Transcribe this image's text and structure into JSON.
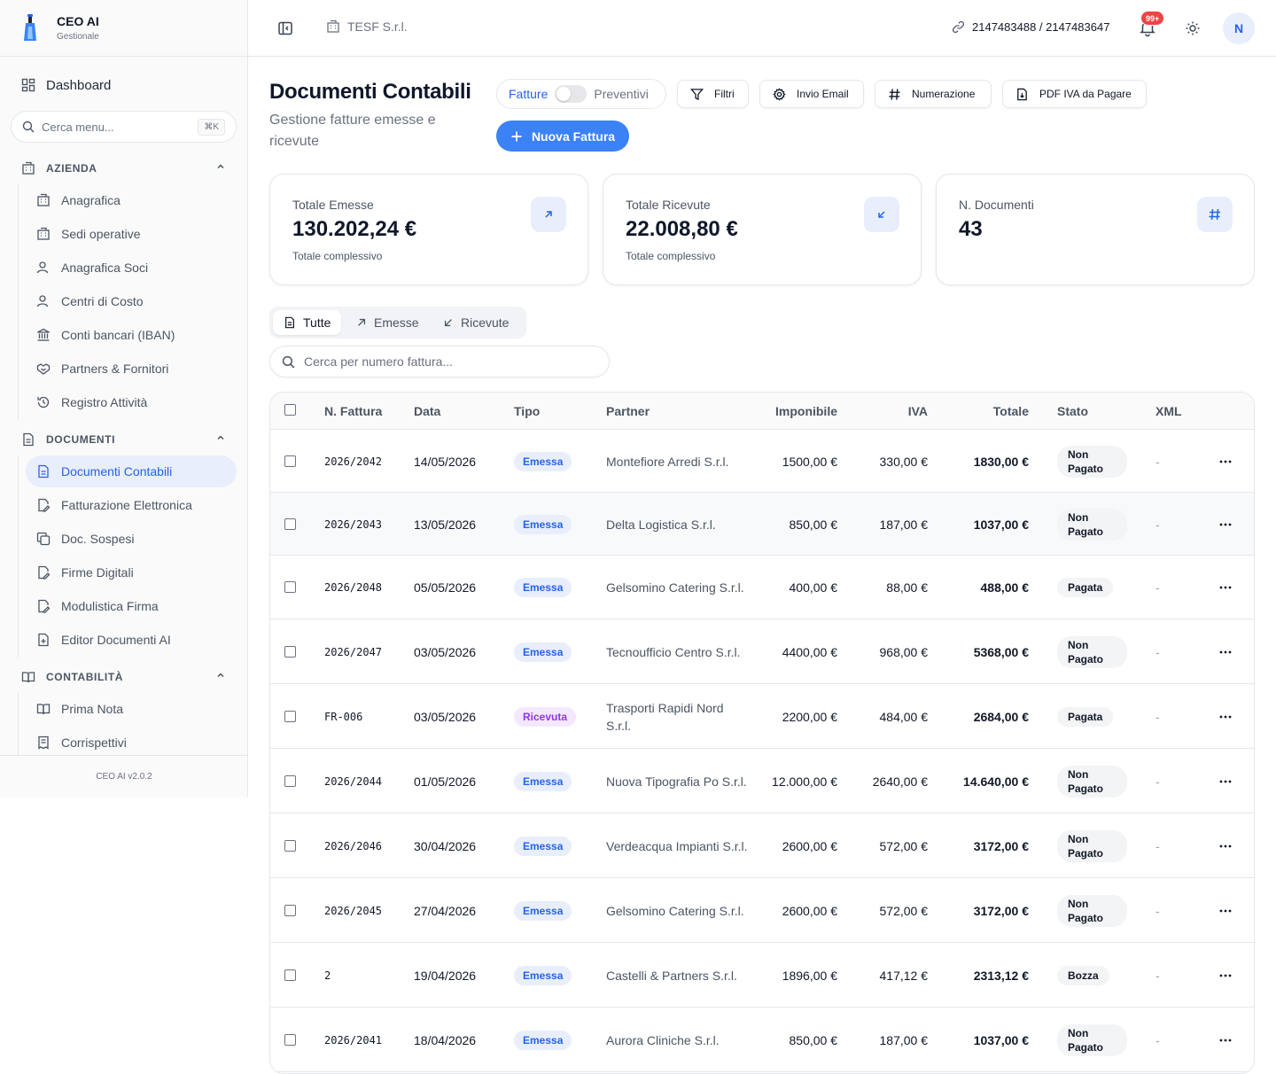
{
  "brand": {
    "title": "CEO AI",
    "subtitle": "Gestionale"
  },
  "sidebar": {
    "dashboard": "Dashboard",
    "search_placeholder": "Cerca menu...",
    "search_shortcut": "⌘K",
    "sections": [
      {
        "label": "AZIENDA",
        "items": [
          "Anagrafica",
          "Sedi operative",
          "Anagrafica Soci",
          "Centri di Costo",
          "Conti bancari (IBAN)",
          "Partners & Fornitori",
          "Registro Attività"
        ]
      },
      {
        "label": "DOCUMENTI",
        "items": [
          "Documenti Contabili",
          "Fatturazione Elettronica",
          "Doc. Sospesi",
          "Firme Digitali",
          "Modulistica Firma",
          "Editor Documenti AI"
        ]
      },
      {
        "label": "CONTABILITÀ",
        "items": [
          "Prima Nota",
          "Corrispettivi"
        ]
      }
    ],
    "active_item": "Documenti Contabili",
    "version": "CEO AI v2.0.2"
  },
  "topbar": {
    "company": "TESF S.r.l.",
    "ids": "2147483488 / 2147483647",
    "notifications_badge": "99+",
    "avatar_initial": "N"
  },
  "header": {
    "title": "Documenti Contabili",
    "subtitle": "Gestione fatture emesse e ricevute",
    "toggle_left": "Fatture",
    "toggle_right": "Preventivi",
    "filters": "Filtri",
    "email": "Invio Email",
    "numbering": "Numerazione",
    "pdf_iva": "PDF IVA da Pagare",
    "new_invoice": "Nuova Fattura"
  },
  "stats": [
    {
      "label": "Totale Emesse",
      "value": "130.202,24 €",
      "hint": "Totale complessivo",
      "icon": "arrow-up-right-icon"
    },
    {
      "label": "Totale Ricevute",
      "value": "22.008,80 €",
      "hint": "Totale complessivo",
      "icon": "arrow-down-left-icon"
    },
    {
      "label": "N. Documenti",
      "value": "43",
      "hint": "",
      "icon": "hash-icon"
    }
  ],
  "tabs": [
    "Tutte",
    "Emesse",
    "Ricevute"
  ],
  "search_placeholder": "Cerca per numero fattura...",
  "table": {
    "headers": [
      "N. Fattura",
      "Data",
      "Tipo",
      "Partner",
      "Imponibile",
      "IVA",
      "Totale",
      "Stato",
      "XML"
    ],
    "rows": [
      {
        "num": "2026/2042",
        "date": "14/05/2026",
        "type": "Emessa",
        "partner": "Montefiore Arredi S.r.l.",
        "imponibile": "1500,00 €",
        "iva": "330,00 €",
        "total": "1830,00 €",
        "status": "Non Pagato",
        "xml": "-"
      },
      {
        "num": "2026/2043",
        "date": "13/05/2026",
        "type": "Emessa",
        "partner": "Delta Logistica S.r.l.",
        "imponibile": "850,00 €",
        "iva": "187,00 €",
        "total": "1037,00 €",
        "status": "Non Pagato",
        "xml": "-"
      },
      {
        "num": "2026/2048",
        "date": "05/05/2026",
        "type": "Emessa",
        "partner": "Gelsomino Catering S.r.l.",
        "imponibile": "400,00 €",
        "iva": "88,00 €",
        "total": "488,00 €",
        "status": "Pagata",
        "xml": "-"
      },
      {
        "num": "2026/2047",
        "date": "03/05/2026",
        "type": "Emessa",
        "partner": "Tecnoufficio Centro S.r.l.",
        "imponibile": "4400,00 €",
        "iva": "968,00 €",
        "total": "5368,00 €",
        "status": "Non Pagato",
        "xml": "-"
      },
      {
        "num": "FR-006",
        "date": "03/05/2026",
        "type": "Ricevuta",
        "partner": "Trasporti Rapidi Nord S.r.l.",
        "imponibile": "2200,00 €",
        "iva": "484,00 €",
        "total": "2684,00 €",
        "status": "Pagata",
        "xml": "-"
      },
      {
        "num": "2026/2044",
        "date": "01/05/2026",
        "type": "Emessa",
        "partner": "Nuova Tipografia Po S.r.l.",
        "imponibile": "12.000,00 €",
        "iva": "2640,00 €",
        "total": "14.640,00 €",
        "status": "Non Pagato",
        "xml": "-"
      },
      {
        "num": "2026/2046",
        "date": "30/04/2026",
        "type": "Emessa",
        "partner": "Verdeacqua Impianti S.r.l.",
        "imponibile": "2600,00 €",
        "iva": "572,00 €",
        "total": "3172,00 €",
        "status": "Non Pagato",
        "xml": "-"
      },
      {
        "num": "2026/2045",
        "date": "27/04/2026",
        "type": "Emessa",
        "partner": "Gelsomino Catering S.r.l.",
        "imponibile": "2600,00 €",
        "iva": "572,00 €",
        "total": "3172,00 €",
        "status": "Non Pagato",
        "xml": "-"
      },
      {
        "num": "2",
        "date": "19/04/2026",
        "type": "Emessa",
        "partner": "Castelli & Partners S.r.l.",
        "imponibile": "1896,00 €",
        "iva": "417,12 €",
        "total": "2313,12 €",
        "status": "Bozza",
        "xml": "-"
      },
      {
        "num": "2026/2041",
        "date": "18/04/2026",
        "type": "Emessa",
        "partner": "Aurora Cliniche S.r.l.",
        "imponibile": "850,00 €",
        "iva": "187,00 €",
        "total": "1037,00 €",
        "status": "Non Pagato",
        "xml": "-"
      }
    ]
  },
  "colors": {
    "accent": "#3b82f6",
    "accent_text": "#2563eb",
    "ricevuta": "#9333ea",
    "badge": "#ef4444"
  }
}
